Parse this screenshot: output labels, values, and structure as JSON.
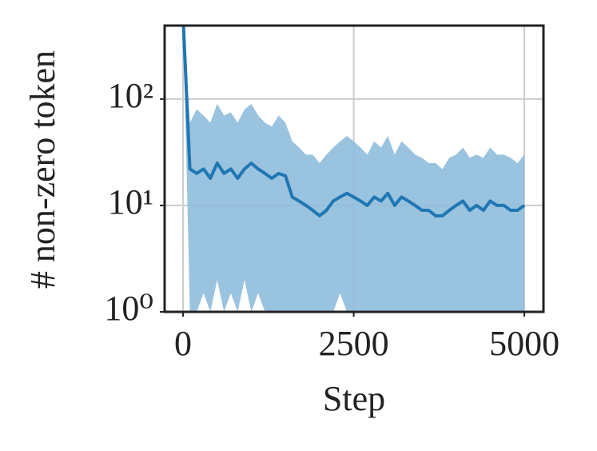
{
  "chart_data": {
    "type": "line",
    "x_label": "Step",
    "y_label": "# non-zero token",
    "x": [
      0,
      100,
      200,
      300,
      400,
      500,
      600,
      700,
      800,
      900,
      1000,
      1100,
      1200,
      1300,
      1400,
      1500,
      1600,
      1700,
      1800,
      1900,
      2000,
      2100,
      2200,
      2300,
      2400,
      2500,
      2600,
      2700,
      2800,
      2900,
      3000,
      3100,
      3200,
      3300,
      3400,
      3500,
      3600,
      3700,
      3800,
      3900,
      4000,
      4100,
      4200,
      4300,
      4400,
      4500,
      4600,
      4700,
      4800,
      4900,
      5000
    ],
    "values": [
      600,
      22,
      20,
      22,
      18,
      25,
      20,
      22,
      18,
      22,
      25,
      22,
      20,
      18,
      20,
      19,
      12,
      11,
      10,
      9,
      8,
      9,
      11,
      12,
      13,
      12,
      11,
      10,
      12,
      11,
      13,
      10,
      12,
      11,
      10,
      9,
      9,
      8,
      8,
      9,
      10,
      11,
      9,
      10,
      9,
      11,
      10,
      10,
      9,
      9,
      10
    ],
    "lower": [
      600,
      1,
      1,
      1.5,
      1,
      2,
      1,
      1.5,
      1,
      2,
      1,
      1.5,
      1,
      1,
      1,
      1,
      1,
      1,
      1,
      1,
      1,
      1,
      1,
      1.5,
      1,
      1,
      1,
      1,
      1,
      1,
      1,
      1,
      1,
      1,
      1,
      1,
      1,
      1,
      1,
      1,
      1,
      1,
      1,
      1,
      1,
      1,
      1,
      1,
      1,
      1,
      1
    ],
    "upper": [
      600,
      60,
      80,
      70,
      60,
      90,
      70,
      75,
      60,
      80,
      90,
      70,
      60,
      55,
      70,
      60,
      40,
      35,
      30,
      30,
      25,
      30,
      35,
      40,
      45,
      40,
      35,
      30,
      40,
      35,
      45,
      30,
      40,
      35,
      30,
      28,
      25,
      25,
      22,
      28,
      30,
      35,
      28,
      30,
      28,
      35,
      30,
      30,
      28,
      25,
      30
    ],
    "color": "#1f77b4",
    "band_color": "#8fbcdc",
    "xlim": [
      -270,
      5280
    ],
    "xticks": [
      0,
      2500,
      5000
    ],
    "ylim": [
      1,
      490
    ],
    "log_y": true,
    "yticks": [
      {
        "value": 1,
        "label": "10⁰"
      },
      {
        "value": 10,
        "label": "10¹"
      },
      {
        "value": 100,
        "label": "10²"
      }
    ],
    "grid": true
  }
}
